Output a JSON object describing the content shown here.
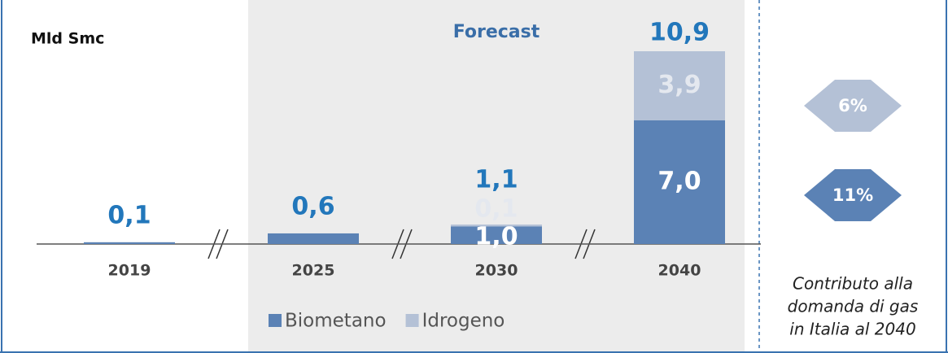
{
  "chart_data": {
    "type": "stacked_bar",
    "unit_label": "Mld Smc",
    "forecast_label": "Forecast",
    "categories": [
      "2019",
      "2025",
      "2030",
      "2040"
    ],
    "series": [
      {
        "name": "Biometano",
        "color": "#5b82b5",
        "values": [
          0.1,
          0.6,
          1.0,
          7.0
        ],
        "value_labels": [
          null,
          null,
          "1,0",
          "7,0"
        ]
      },
      {
        "name": "Idrogeno",
        "color": "#b4c1d6",
        "values": [
          null,
          null,
          0.1,
          3.9
        ],
        "value_labels": [
          null,
          null,
          "0,1",
          "3,9"
        ]
      }
    ],
    "totals": [
      0.1,
      0.6,
      1.1,
      10.9
    ],
    "total_labels": [
      "0,1",
      "0,6",
      "1,1",
      "10,9"
    ],
    "shares": [
      {
        "value": 6,
        "label": "6%",
        "color": "#b4c1d6"
      },
      {
        "value": 11,
        "label": "11%",
        "color": "#5b82b5"
      }
    ],
    "side_note": [
      "Contributo alla",
      "domanda di gas",
      "in Italia al 2040"
    ]
  }
}
